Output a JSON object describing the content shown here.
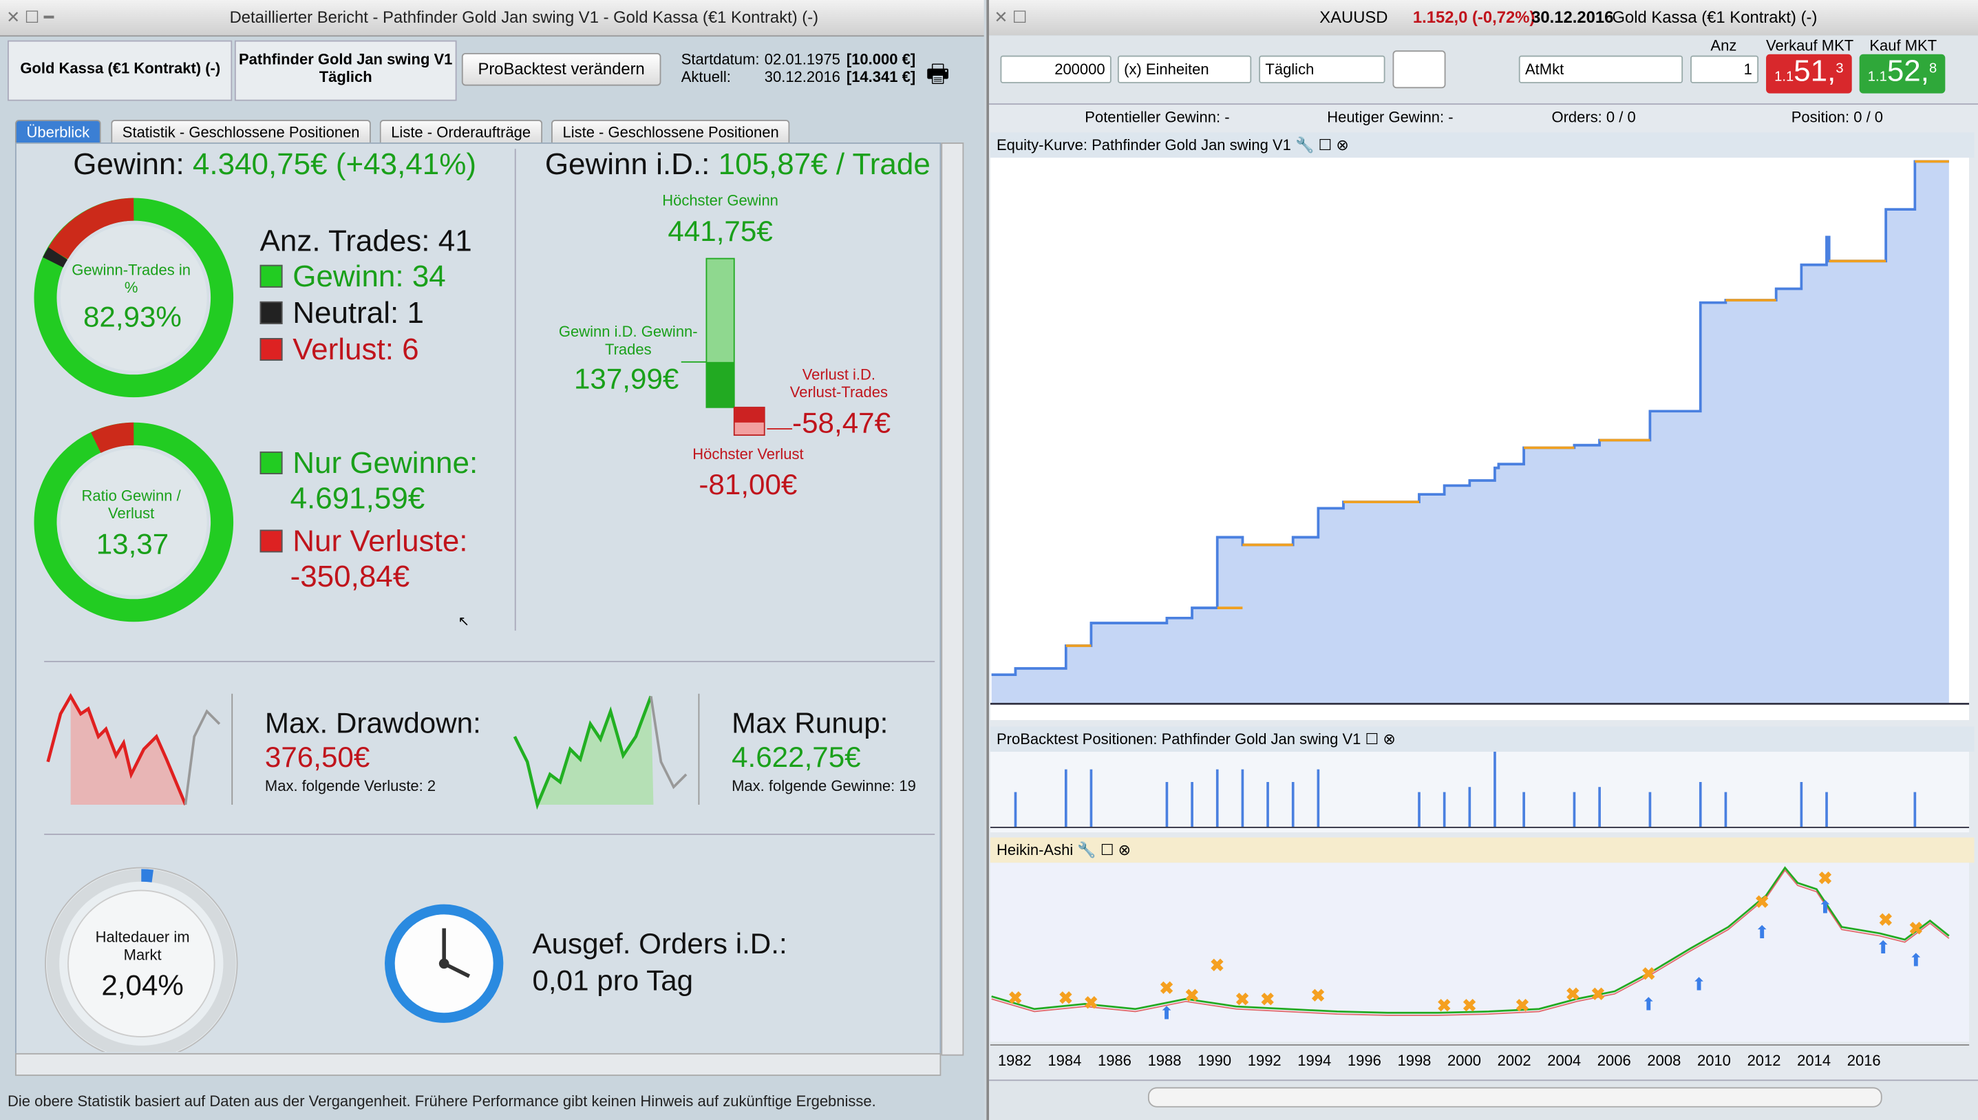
{
  "left_window": {
    "title": "Detaillierter Bericht - Pathfinder Gold Jan swing V1 - Gold Kassa (€1 Kontrakt) (-)",
    "instrument": "Gold Kassa (€1 Kontrakt) (-)",
    "system": "Pathfinder Gold Jan swing V1",
    "period": "Täglich",
    "button": "ProBacktest verändern",
    "start_label": "Startdatum:",
    "start_date": "02.01.1975",
    "start_capital": "[10.000 €]",
    "current_label": "Aktuell:",
    "current_date": "30.12.2016",
    "current_capital": "[14.341 €]",
    "tabs": [
      "Überblick",
      "Statistik - Geschlossene Positionen",
      "Liste - Orderaufträge",
      "Liste - Geschlossene Positionen"
    ],
    "gain": {
      "label": "Gewinn:",
      "value": "4.340,75€ (+43,41%)"
    },
    "win_donut": {
      "label": "Gewinn-Trades in %",
      "value": "82,93%"
    },
    "trades": {
      "total": "Anz. Trades: 41",
      "win": "Gewinn: 34",
      "neutral": "Neutral: 1",
      "loss": "Verlust: 6"
    },
    "ratio_donut": {
      "label": "Ratio Gewinn / Verlust",
      "value": "13,37"
    },
    "only_gains": {
      "label": "Nur Gewinne:",
      "value": "4.691,59€"
    },
    "only_losses": {
      "label": "Nur Verluste:",
      "value": "-350,84€"
    },
    "average": {
      "label": "Gewinn i.D.:",
      "value": "105,87€ / Trade",
      "max_gain_label": "Höchster Gewinn",
      "max_gain": "441,75€",
      "avg_win_label": "Gewinn i.D. Gewinn-Trades",
      "avg_win": "137,99€",
      "avg_loss_label": "Verlust i.D. Verlust-Trades",
      "avg_loss": "-58,47€",
      "max_loss_label": "Höchster Verlust",
      "max_loss": "-81,00€"
    },
    "drawdown": {
      "label": "Max. Drawdown:",
      "value": "376,50€",
      "note": "Max. folgende Verluste: 2"
    },
    "runup": {
      "label": "Max Runup:",
      "value": "4.622,75€",
      "note": "Max. folgende Gewinne: 19"
    },
    "holding": {
      "label": "Haltedauer im Markt",
      "value": "2,04%"
    },
    "orders": {
      "label": "Ausgef. Orders i.D.:",
      "value": "0,01 pro Tag"
    },
    "footer": "Die obere Statistik basiert auf Daten aus der Vergangenheit. Frühere Performance gibt keinen Hinweis auf zukünftige Ergebnisse."
  },
  "right_window": {
    "symbol": "XAUUSD",
    "price": "1.152,0 (-0,72%)",
    "date": "30.12.2016",
    "instrument": "Gold Kassa (€1 Kontrakt) (-)",
    "quantity": "200000",
    "unit": "(x) Einheiten",
    "period": "Täglich",
    "order_type": "AtMkt",
    "anz_label": "Anz",
    "anz": "1",
    "sell_label": "Verkauf MKT",
    "buy_label": "Kauf MKT",
    "sell_price": {
      "prefix": "1.1",
      "main": "51,",
      "sup": "3"
    },
    "buy_price": {
      "prefix": "1.1",
      "main": "52,",
      "sup": "8"
    },
    "potential_gain": "Potentieller Gewinn: -",
    "today_gain": "Heutiger Gewinn: -",
    "orders_label": "Orders: 0",
    "orders_rest": "/ 0",
    "position_label": "Position: 0",
    "position_rest": "/ 0",
    "equity_panel": "Equity-Kurve: Pathfinder Gold Jan swing V1",
    "positions_panel": "ProBacktest Positionen: Pathfinder Gold Jan swing V1",
    "price_panel": "Heikin-Ashi",
    "years": [
      "1982",
      "1984",
      "1986",
      "1988",
      "1990",
      "1992",
      "1994",
      "1996",
      "1998",
      "2000",
      "2002",
      "2004",
      "2006",
      "2008",
      "2010",
      "2012",
      "2014",
      "2016"
    ]
  }
}
